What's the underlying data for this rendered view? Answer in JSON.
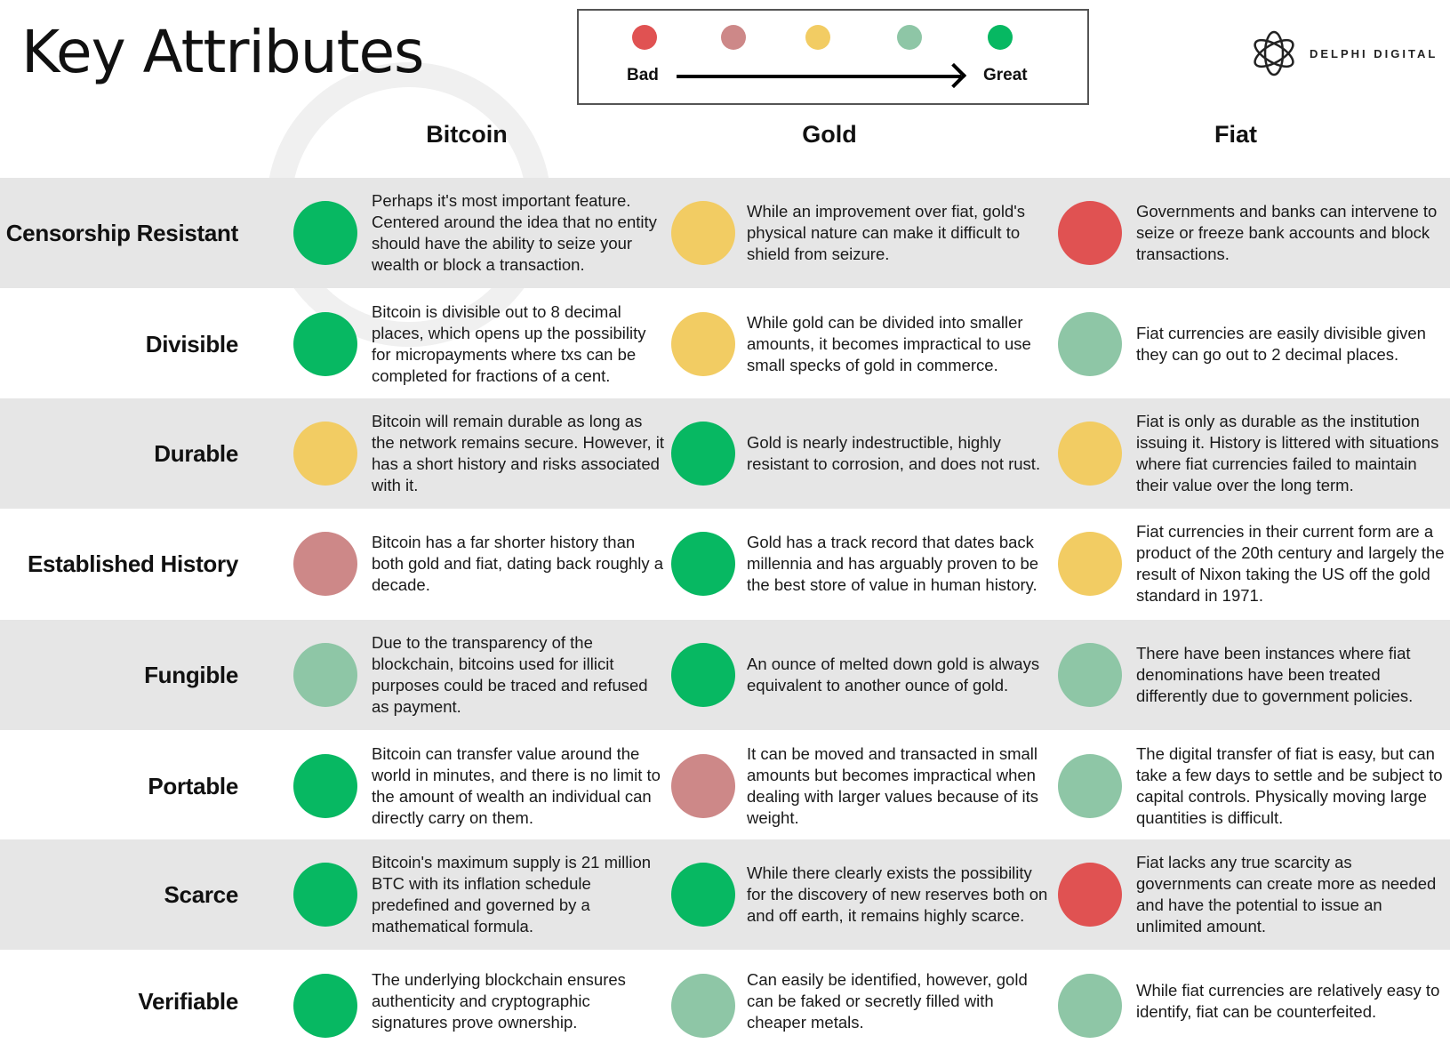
{
  "title": "Key Attributes",
  "legend": {
    "bad": "Bad",
    "great": "Great",
    "scale": [
      "#e05252",
      "#cd8888",
      "#f2cc63",
      "#8ec6a6",
      "#07b862"
    ]
  },
  "logo": {
    "text": "DELPHI DIGITAL"
  },
  "columns": [
    "Bitcoin",
    "Gold",
    "Fiat"
  ],
  "colors": {
    "1": "#e05252",
    "2": "#cd8888",
    "3": "#f2cc63",
    "4": "#8ec6a6",
    "5": "#07b862"
  },
  "rows": [
    {
      "label": "Censorship Resistant",
      "cells": [
        {
          "rating": 5,
          "text": "Perhaps it's most important feature. Centered around the idea that no entity should have the ability to seize your wealth or block a transaction."
        },
        {
          "rating": 3,
          "text": "While an improvement over fiat, gold's physical nature can make it difficult to shield from seizure."
        },
        {
          "rating": 1,
          "text": "Governments and banks can intervene to seize or freeze bank accounts and block transactions."
        }
      ]
    },
    {
      "label": "Divisible",
      "cells": [
        {
          "rating": 5,
          "text": "Bitcoin is divisible out to 8 decimal places, which opens up the possibility for micropayments where txs can be completed for fractions of a cent."
        },
        {
          "rating": 3,
          "text": "While gold can be divided into smaller amounts, it becomes impractical to use small specks of gold in commerce."
        },
        {
          "rating": 4,
          "text": "Fiat currencies are easily divisible given they can go out to 2 decimal places."
        }
      ]
    },
    {
      "label": "Durable",
      "cells": [
        {
          "rating": 3,
          "text": "Bitcoin will remain durable as long as the network remains secure. However, it has a short history and risks associated with it."
        },
        {
          "rating": 5,
          "text": "Gold is nearly indestructible, highly resistant to corrosion, and does not rust."
        },
        {
          "rating": 3,
          "text": "Fiat is only as durable as the institution issuing it. History is littered with situations where fiat currencies failed to maintain their value over the long term."
        }
      ]
    },
    {
      "label": "Established History",
      "cells": [
        {
          "rating": 2,
          "text": "Bitcoin has a far shorter history than both gold and fiat, dating back roughly a decade."
        },
        {
          "rating": 5,
          "text": "Gold has a track record that dates back millennia and has arguably proven to be the best store of value in human history."
        },
        {
          "rating": 3,
          "text": "Fiat currencies in their current form are a product of the 20th century and largely the result of Nixon taking the US off the gold standard in 1971."
        }
      ]
    },
    {
      "label": "Fungible",
      "cells": [
        {
          "rating": 4,
          "text": "Due to the transparency of the blockchain, bitcoins used for illicit purposes could be traced and refused as payment."
        },
        {
          "rating": 5,
          "text": "An ounce of melted down gold is always equivalent to another ounce of gold."
        },
        {
          "rating": 4,
          "text": "There have been instances where fiat denominations have been treated differently due to government policies."
        }
      ]
    },
    {
      "label": "Portable",
      "cells": [
        {
          "rating": 5,
          "text": "Bitcoin can transfer value around the world in minutes, and there is no limit to the amount of wealth an individual can directly carry on them."
        },
        {
          "rating": 2,
          "text": "It can be moved and transacted in small amounts but becomes impractical when dealing with larger values because of its weight."
        },
        {
          "rating": 4,
          "text": "The digital transfer of fiat is easy, but can take a few days to settle and be subject to capital controls. Physically moving large quantities is difficult."
        }
      ]
    },
    {
      "label": "Scarce",
      "cells": [
        {
          "rating": 5,
          "text": "Bitcoin's maximum supply is 21 million BTC with its inflation schedule predefined and governed by a mathematical formula."
        },
        {
          "rating": 5,
          "text": "While there clearly exists the possibility for the discovery of new reserves both on and off earth, it remains highly scarce."
        },
        {
          "rating": 1,
          "text": "Fiat lacks any true scarcity as governments can create more as needed and have the potential to issue an unlimited amount."
        }
      ]
    },
    {
      "label": "Verifiable",
      "cells": [
        {
          "rating": 5,
          "text": "The underlying blockchain ensures authenticity and cryptographic signatures prove ownership."
        },
        {
          "rating": 4,
          "text": "Can easily be identified, however, gold can be faked or secretly filled with cheaper metals."
        },
        {
          "rating": 4,
          "text": "While fiat currencies are relatively easy to identify, fiat can be counterfeited."
        }
      ]
    }
  ]
}
